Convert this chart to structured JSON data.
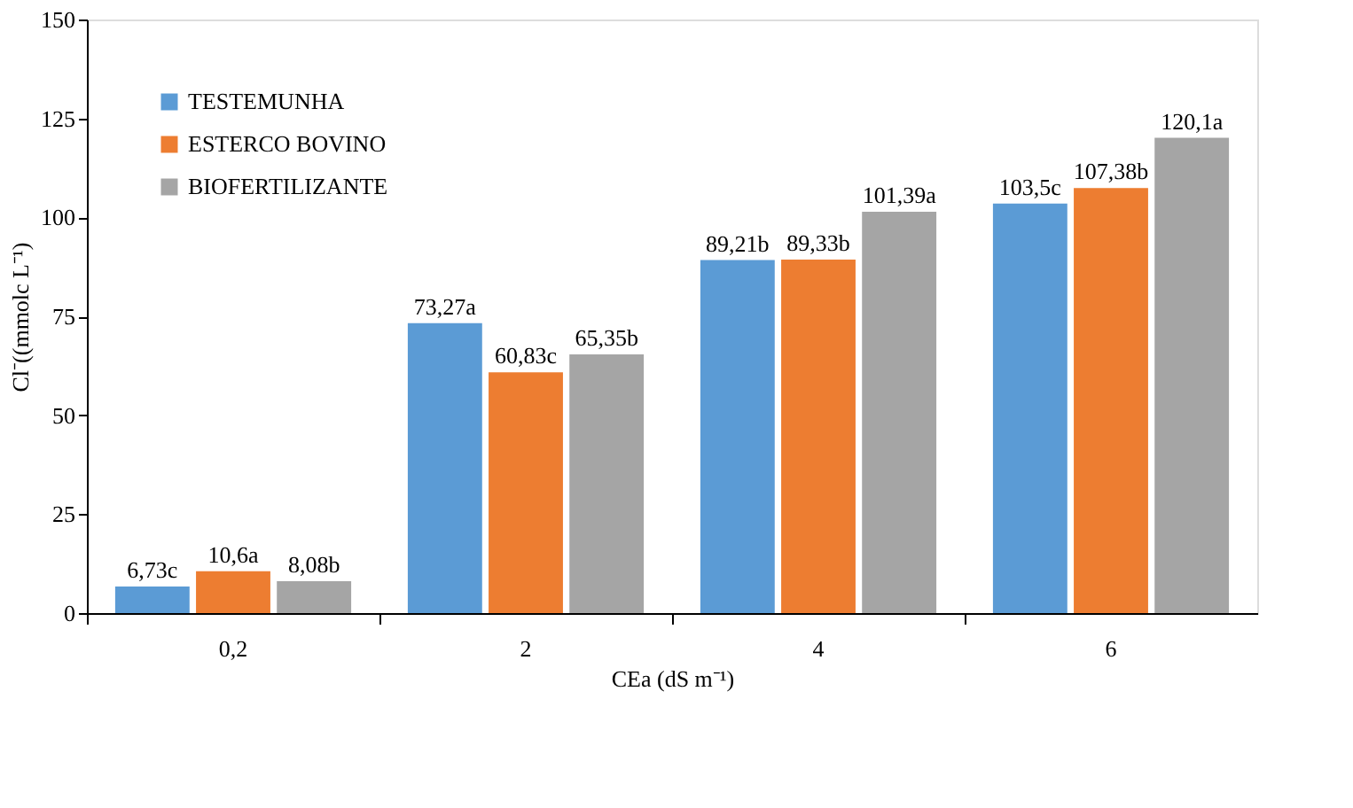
{
  "chart_data": {
    "type": "bar",
    "xlabel": "CEa (dS m⁻¹)",
    "ylabel": "Cl⁻((mmolc L⁻¹)",
    "categories": [
      "0,2",
      "2",
      "4",
      "6"
    ],
    "series": [
      {
        "name": "TESTEMUNHA",
        "color": "#5b9bd5",
        "values": [
          6.73,
          73.27,
          89.21,
          103.5
        ],
        "value_labels": [
          "6,73c",
          "73,27a",
          "89,21b",
          "103,5c"
        ]
      },
      {
        "name": "ESTERCO BOVINO",
        "color": "#ed7d31",
        "values": [
          10.6,
          60.83,
          89.33,
          107.38
        ],
        "value_labels": [
          "10,6a",
          "60,83c",
          "89,33b",
          "107,38b"
        ]
      },
      {
        "name": "BIOFERTILIZANTE",
        "color": "#a5a5a5",
        "values": [
          8.08,
          65.35,
          101.39,
          120.1
        ],
        "value_labels": [
          "8,08b",
          "65,35b",
          "101,39a",
          "120,1a"
        ]
      }
    ],
    "ylim": [
      0,
      150
    ],
    "yticks": [
      0,
      25,
      50,
      75,
      100,
      125,
      150
    ],
    "grid": false,
    "legend": "top left"
  }
}
